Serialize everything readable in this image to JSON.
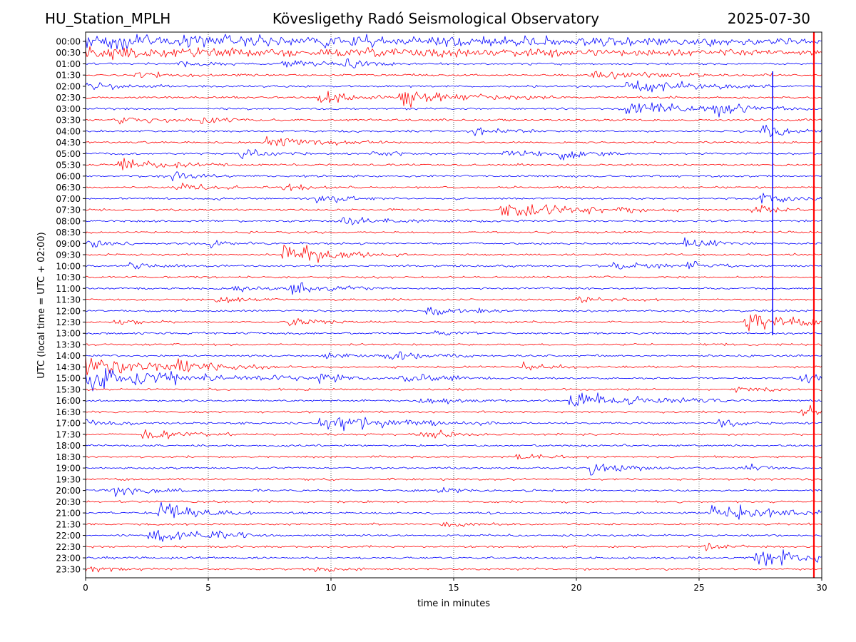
{
  "header": {
    "station": "HU_Station_MPLH",
    "observatory": "Kövesligethy Radó Seismological Observatory",
    "date": "2025-07-30"
  },
  "chart_data": {
    "type": "line",
    "title": "Kövesligethy Radó Seismological Observatory",
    "xlabel": "time in minutes",
    "ylabel": "UTC (local time = UTC + 02:00)",
    "xlim": [
      0,
      30
    ],
    "x_ticks": [
      "0",
      "5",
      "10",
      "15",
      "20",
      "25",
      "30"
    ],
    "grid": "vertical dotted at 5-minute ticks",
    "colors": {
      "odd_trace": "#0000ff",
      "even_trace": "#ff0000",
      "axes": "#000000"
    },
    "y_ticks": [
      "00:00",
      "00:30",
      "01:00",
      "01:30",
      "02:00",
      "02:30",
      "03:00",
      "03:30",
      "04:00",
      "04:30",
      "05:00",
      "05:30",
      "06:00",
      "06:30",
      "07:00",
      "07:30",
      "08:00",
      "08:30",
      "09:00",
      "09:30",
      "10:00",
      "10:30",
      "11:00",
      "11:30",
      "12:00",
      "12:30",
      "13:00",
      "13:30",
      "14:00",
      "14:30",
      "15:00",
      "15:30",
      "16:00",
      "16:30",
      "17:00",
      "17:30",
      "18:00",
      "18:30",
      "19:00",
      "19:30",
      "20:00",
      "20:30",
      "21:00",
      "21:30",
      "22:00",
      "22:30",
      "23:00",
      "23:30"
    ]
  }
}
